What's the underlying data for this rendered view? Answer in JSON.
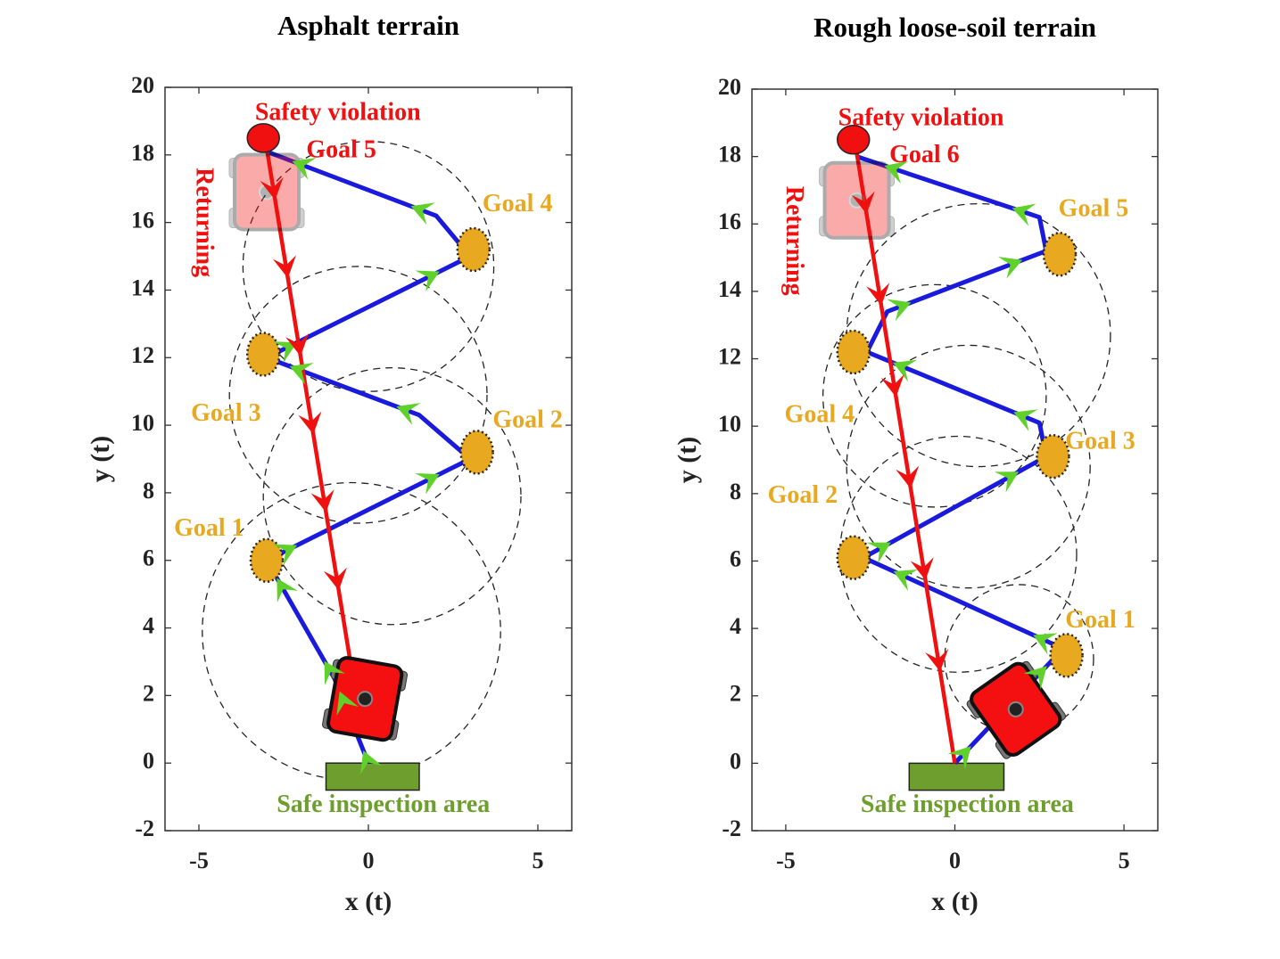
{
  "chart_data": [
    {
      "type": "line",
      "title": "Asphalt terrain",
      "xlabel": "x (t)",
      "ylabel": "y (t)",
      "xlim": [
        -6,
        6
      ],
      "ylim": [
        -2,
        20
      ],
      "xticks": [
        -5,
        0,
        5
      ],
      "yticks": [
        -2,
        0,
        2,
        4,
        6,
        8,
        10,
        12,
        14,
        16,
        18,
        20
      ],
      "grid": false,
      "series": [
        {
          "color": "#1a1adc",
          "arrow_color": "#5fd12a",
          "x": [
            0,
            -1,
            -3,
            3,
            1.5,
            -3,
            3,
            2,
            -3
          ],
          "values": [
            0,
            2.5,
            6,
            9,
            10.3,
            12,
            15,
            16.2,
            18.1
          ]
        },
        {
          "color": "#f01010",
          "arrow_color": "#f01010",
          "x": [
            -3,
            -0.5
          ],
          "values": [
            18.2,
            2.8
          ]
        }
      ],
      "goals": {
        "color": "#e8a820",
        "x": [
          -3,
          3.2,
          -3.1,
          3.1
        ],
        "y": [
          6,
          9.2,
          12.1,
          15.2
        ]
      },
      "violation": {
        "color": "#f01010",
        "x": -3.1,
        "y": 18.5
      },
      "circles": [
        {
          "x": -0.5,
          "y": 3.9,
          "r": 4.4
        },
        {
          "x": 0.7,
          "y": 7.9,
          "r": 3.8
        },
        {
          "x": -0.3,
          "y": 10.9,
          "r": 3.8
        },
        {
          "x": 0,
          "y": 14.7,
          "r": 3.7
        }
      ],
      "safe_area": {
        "label": "Safe inspection area",
        "x": [
          -1.25,
          1.5
        ],
        "y": [
          -0.8,
          0
        ],
        "color": "#6e9e2e"
      },
      "robots": [
        {
          "x": -0.1,
          "y": 1.9,
          "angle": 10,
          "opacity": 1
        },
        {
          "x": -3,
          "y": 16.9,
          "angle": 0,
          "opacity": 0.35
        }
      ],
      "annotations": [
        {
          "text": "Safety violation",
          "x": -0.9,
          "y": 19.2,
          "color": "#f01010",
          "rotation": 0
        },
        {
          "text": "Goal 5",
          "x": -0.8,
          "y": 18.1,
          "color": "#f01010",
          "rotation": 0
        },
        {
          "text": "Returning",
          "x": -4.9,
          "y": 16,
          "color": "#f01010",
          "rotation": 90
        },
        {
          "text": "Goal 4",
          "x": 4.4,
          "y": 16.5,
          "color": "#e8a820",
          "rotation": 0
        },
        {
          "text": "Goal 3",
          "x": -4.2,
          "y": 10.3,
          "color": "#e8a820",
          "rotation": 0
        },
        {
          "text": "Goal 2",
          "x": 4.7,
          "y": 10.1,
          "color": "#e8a820",
          "rotation": 0
        },
        {
          "text": "Goal 1",
          "x": -4.7,
          "y": 6.9,
          "color": "#e8a820",
          "rotation": 0
        }
      ]
    },
    {
      "type": "line",
      "title": "Rough loose-soil terrain",
      "xlabel": "x (t)",
      "ylabel": "y (t)",
      "xlim": [
        -6,
        6
      ],
      "ylim": [
        -2,
        20
      ],
      "xticks": [
        -5,
        0,
        5
      ],
      "yticks": [
        -2,
        0,
        2,
        4,
        6,
        8,
        10,
        12,
        14,
        16,
        18,
        20
      ],
      "grid": false,
      "series": [
        {
          "color": "#1a1adc",
          "arrow_color": "#5fd12a",
          "x": [
            0,
            3.2,
            -2.7,
            2.7,
            2.5,
            -2.6,
            -2,
            2.7,
            2.5,
            -2.9
          ],
          "values": [
            0,
            3.4,
            6.1,
            9.1,
            10.1,
            12.2,
            13.4,
            15.2,
            16.2,
            18
          ]
        },
        {
          "color": "#f01010",
          "arrow_color": "#f01010",
          "x": [
            -2.9,
            0
          ],
          "values": [
            18.1,
            0
          ]
        }
      ],
      "goals": {
        "color": "#e8a820",
        "x": [
          3.3,
          -3,
          2.9,
          -3,
          3.1
        ],
        "y": [
          3.2,
          6.1,
          9.1,
          12.2,
          15.1
        ]
      },
      "violation": {
        "color": "#f01010",
        "x": -3,
        "y": 18.5
      },
      "circles": [
        {
          "x": 1.9,
          "y": 3.1,
          "r": 2.2
        },
        {
          "x": 0.1,
          "y": 6.2,
          "r": 3.5
        },
        {
          "x": 0.4,
          "y": 8.8,
          "r": 3.6
        },
        {
          "x": -0.6,
          "y": 10.9,
          "r": 3.3
        },
        {
          "x": 0.7,
          "y": 12.7,
          "r": 3.9
        }
      ],
      "safe_area": {
        "label": "Safe inspection area",
        "x": [
          -1.35,
          1.45
        ],
        "y": [
          -0.8,
          0
        ],
        "color": "#6e9e2e"
      },
      "robots": [
        {
          "x": 1.8,
          "y": 1.6,
          "angle": -35,
          "opacity": 1
        },
        {
          "x": -2.9,
          "y": 16.7,
          "angle": 0,
          "opacity": 0.35
        }
      ],
      "annotations": [
        {
          "text": "Safety violation",
          "x": -1,
          "y": 19.1,
          "color": "#f01010",
          "rotation": 0
        },
        {
          "text": "Goal 6",
          "x": -0.9,
          "y": 18,
          "color": "#f01010",
          "rotation": 0
        },
        {
          "text": "Returning",
          "x": -4.8,
          "y": 15.5,
          "color": "#f01010",
          "rotation": 90
        },
        {
          "text": "Goal 5",
          "x": 4.1,
          "y": 16.4,
          "color": "#e8a820",
          "rotation": 0
        },
        {
          "text": "Goal 4",
          "x": -4,
          "y": 10.3,
          "color": "#e8a820",
          "rotation": 0
        },
        {
          "text": "Goal 3",
          "x": 4.3,
          "y": 9.5,
          "color": "#e8a820",
          "rotation": 0
        },
        {
          "text": "Goal 2",
          "x": -4.5,
          "y": 7.9,
          "color": "#e8a820",
          "rotation": 0
        },
        {
          "text": "Goal 1",
          "x": 4.3,
          "y": 4.2,
          "color": "#e8a820",
          "rotation": 0
        }
      ]
    }
  ]
}
